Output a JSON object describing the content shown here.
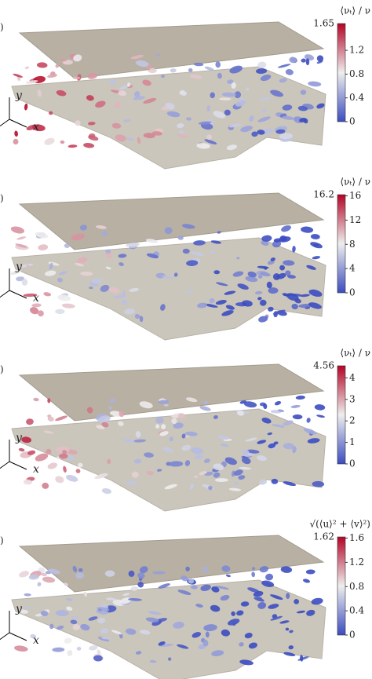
{
  "figure": {
    "axis_labels": {
      "x": "x",
      "y": "y"
    },
    "panels": [
      {
        "panel_label": ")",
        "colorbar": {
          "label": "⟨νₜ⟩ / ν",
          "lim": [
            0,
            1.65
          ],
          "ticks": [
            0,
            0.4,
            0.8,
            1.2
          ]
        }
      },
      {
        "panel_label": ")",
        "colorbar": {
          "label": "⟨νₜ⟩ / ν",
          "lim": [
            0,
            16.2
          ],
          "ticks": [
            0,
            4,
            8,
            12,
            16
          ]
        }
      },
      {
        "panel_label": ")",
        "colorbar": {
          "label": "⟨νₜ⟩ / ν",
          "lim": [
            0,
            4.56
          ],
          "ticks": [
            0,
            1,
            2,
            3,
            4
          ]
        }
      },
      {
        "panel_label": ")",
        "colorbar": {
          "label": "√(⟨u⟩² + ⟨v⟩²)",
          "lim": [
            0,
            1.62
          ],
          "ticks": [
            0,
            0.4,
            0.8,
            1.2,
            1.6
          ]
        }
      }
    ]
  }
}
